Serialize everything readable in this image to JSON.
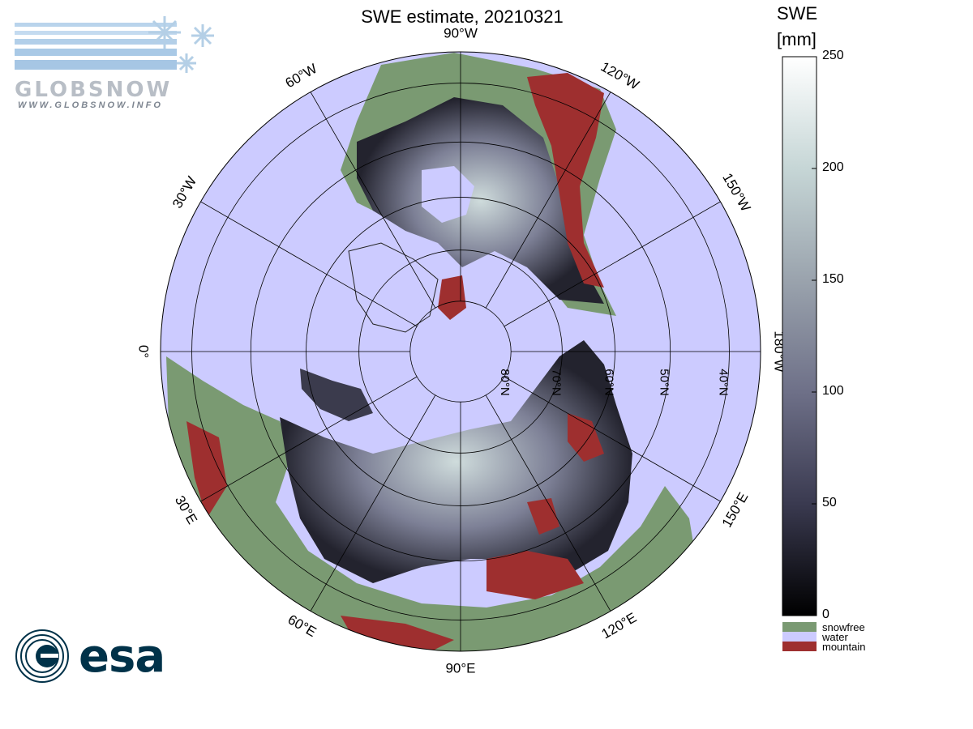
{
  "title": "SWE estimate, 20210321",
  "logos": {
    "globsnow_name": "GLOBSNOW",
    "globsnow_url": "WWW.GLOBSNOW.INFO",
    "esa_name": "esa"
  },
  "map": {
    "projection": "north polar stereographic",
    "lon_labels": [
      {
        "text": "90°W"
      },
      {
        "text": "60°W"
      },
      {
        "text": "120°W"
      },
      {
        "text": "30°W"
      },
      {
        "text": "150°W"
      },
      {
        "text": "0°"
      },
      {
        "text": "180°W"
      },
      {
        "text": "30°E"
      },
      {
        "text": "150°E"
      },
      {
        "text": "60°E"
      },
      {
        "text": "120°E"
      },
      {
        "text": "90°E"
      }
    ],
    "lat_labels": [
      "80°N",
      "70°N",
      "60°N",
      "50°N",
      "40°N"
    ],
    "latitudes": [
      80,
      70,
      60,
      50,
      40
    ],
    "lat_limit": 35
  },
  "colorbar": {
    "title_line1": "SWE",
    "title_line2": "[mm]",
    "min": 0,
    "max": 250,
    "ticks": [
      "250",
      "200",
      "150",
      "100",
      "50",
      "0"
    ],
    "stops": [
      "#000000",
      "#3a3a50",
      "#6e7088",
      "#9aa3ad",
      "#c6d6d6",
      "#ffffff"
    ],
    "legend": [
      {
        "label": "snowfree",
        "color": "#7a9a72"
      },
      {
        "label": "water",
        "color": "#cccbff"
      },
      {
        "label": "mountain",
        "color": "#9e2f2f"
      }
    ]
  },
  "colors": {
    "ocean": "#cccbff",
    "snowfree": "#7a9a72",
    "mountain": "#9e2f2f",
    "snow_dark": "#1c1c26",
    "snow_mid": "#5e6076",
    "snow_light": "#b9c8c8"
  }
}
